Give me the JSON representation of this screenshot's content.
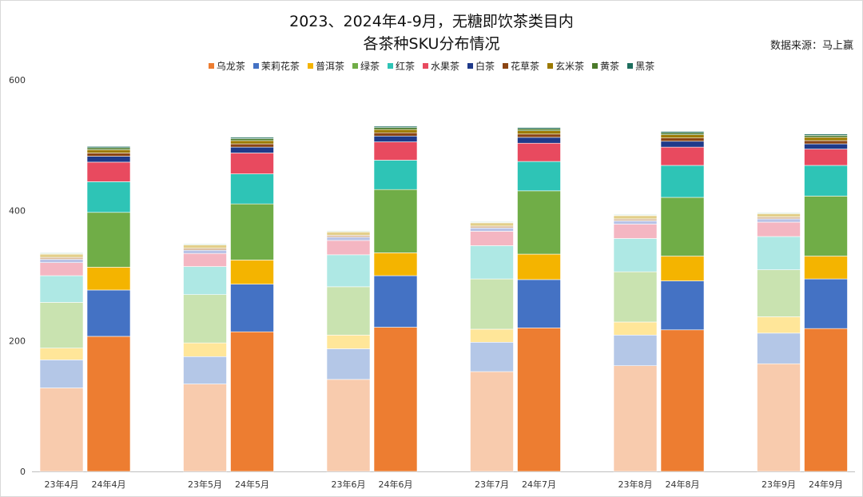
{
  "title_line1": "2023、2024年4-9月，无糖即饮茶类目内",
  "title_line2": "各茶种SKU分布情况",
  "source": "数据来源：马上赢",
  "chart_data": {
    "type": "bar",
    "stacked": true,
    "categories": [
      "23年4月",
      "24年4月",
      "23年5月",
      "24年5月",
      "23年6月",
      "24年6月",
      "23年7月",
      "24年7月",
      "23年8月",
      "24年8月",
      "23年9月",
      "24年9月"
    ],
    "ylim": [
      0,
      600
    ],
    "yticks": [
      0,
      200,
      400,
      600
    ],
    "grid": false,
    "legend_position": "top",
    "series": [
      {
        "name": "乌龙茶",
        "color": "#ED7D31",
        "light": "#F8CBAD",
        "values": [
          128,
          207,
          134,
          214,
          141,
          221,
          153,
          220,
          162,
          217,
          165,
          219
        ]
      },
      {
        "name": "茉莉花茶",
        "color": "#4472C4",
        "light": "#B4C7E7",
        "values": [
          43,
          71,
          42,
          73,
          47,
          79,
          45,
          74,
          47,
          75,
          47,
          76
        ]
      },
      {
        "name": "普洱茶",
        "color": "#F4B400",
        "light": "#FFE699",
        "values": [
          18,
          35,
          21,
          37,
          21,
          35,
          20,
          39,
          20,
          38,
          25,
          35
        ]
      },
      {
        "name": "绿茶",
        "color": "#70AD47",
        "light": "#C9E3B0",
        "values": [
          70,
          84,
          74,
          86,
          74,
          97,
          77,
          97,
          77,
          90,
          72,
          92
        ]
      },
      {
        "name": "红茶",
        "color": "#2EC4B6",
        "light": "#AEE8E4",
        "values": [
          41,
          47,
          43,
          46,
          49,
          45,
          51,
          45,
          51,
          49,
          51,
          47
        ]
      },
      {
        "name": "水果茶",
        "color": "#E84A5F",
        "light": "#F4B6C2",
        "values": [
          20,
          30,
          20,
          32,
          22,
          28,
          22,
          28,
          22,
          28,
          22,
          25
        ]
      },
      {
        "name": "白茶",
        "color": "#1F3A8A",
        "light": "#B8C2E6",
        "values": [
          5,
          9,
          5,
          9,
          5,
          9,
          5,
          9,
          5,
          9,
          5,
          8
        ]
      },
      {
        "name": "花草茶",
        "color": "#8B4513",
        "light": "#D9B99B",
        "values": [
          3,
          5,
          3,
          5,
          3,
          5,
          3,
          5,
          3,
          5,
          3,
          5
        ]
      },
      {
        "name": "玄米茶",
        "color": "#9C7A00",
        "light": "#E3CF8A",
        "values": [
          5,
          5,
          5,
          5,
          5,
          5,
          5,
          5,
          5,
          5,
          5,
          5
        ]
      },
      {
        "name": "黄茶",
        "color": "#4B7A2A",
        "light": "#A9D18E",
        "values": [
          1,
          3,
          1,
          3,
          1,
          3,
          1,
          3,
          1,
          3,
          1,
          3
        ]
      },
      {
        "name": "黑茶",
        "color": "#1E6E5E",
        "light": "#9CC9BE",
        "values": [
          1,
          2,
          1,
          2,
          1,
          2,
          1,
          2,
          1,
          2,
          1,
          2
        ]
      }
    ]
  }
}
